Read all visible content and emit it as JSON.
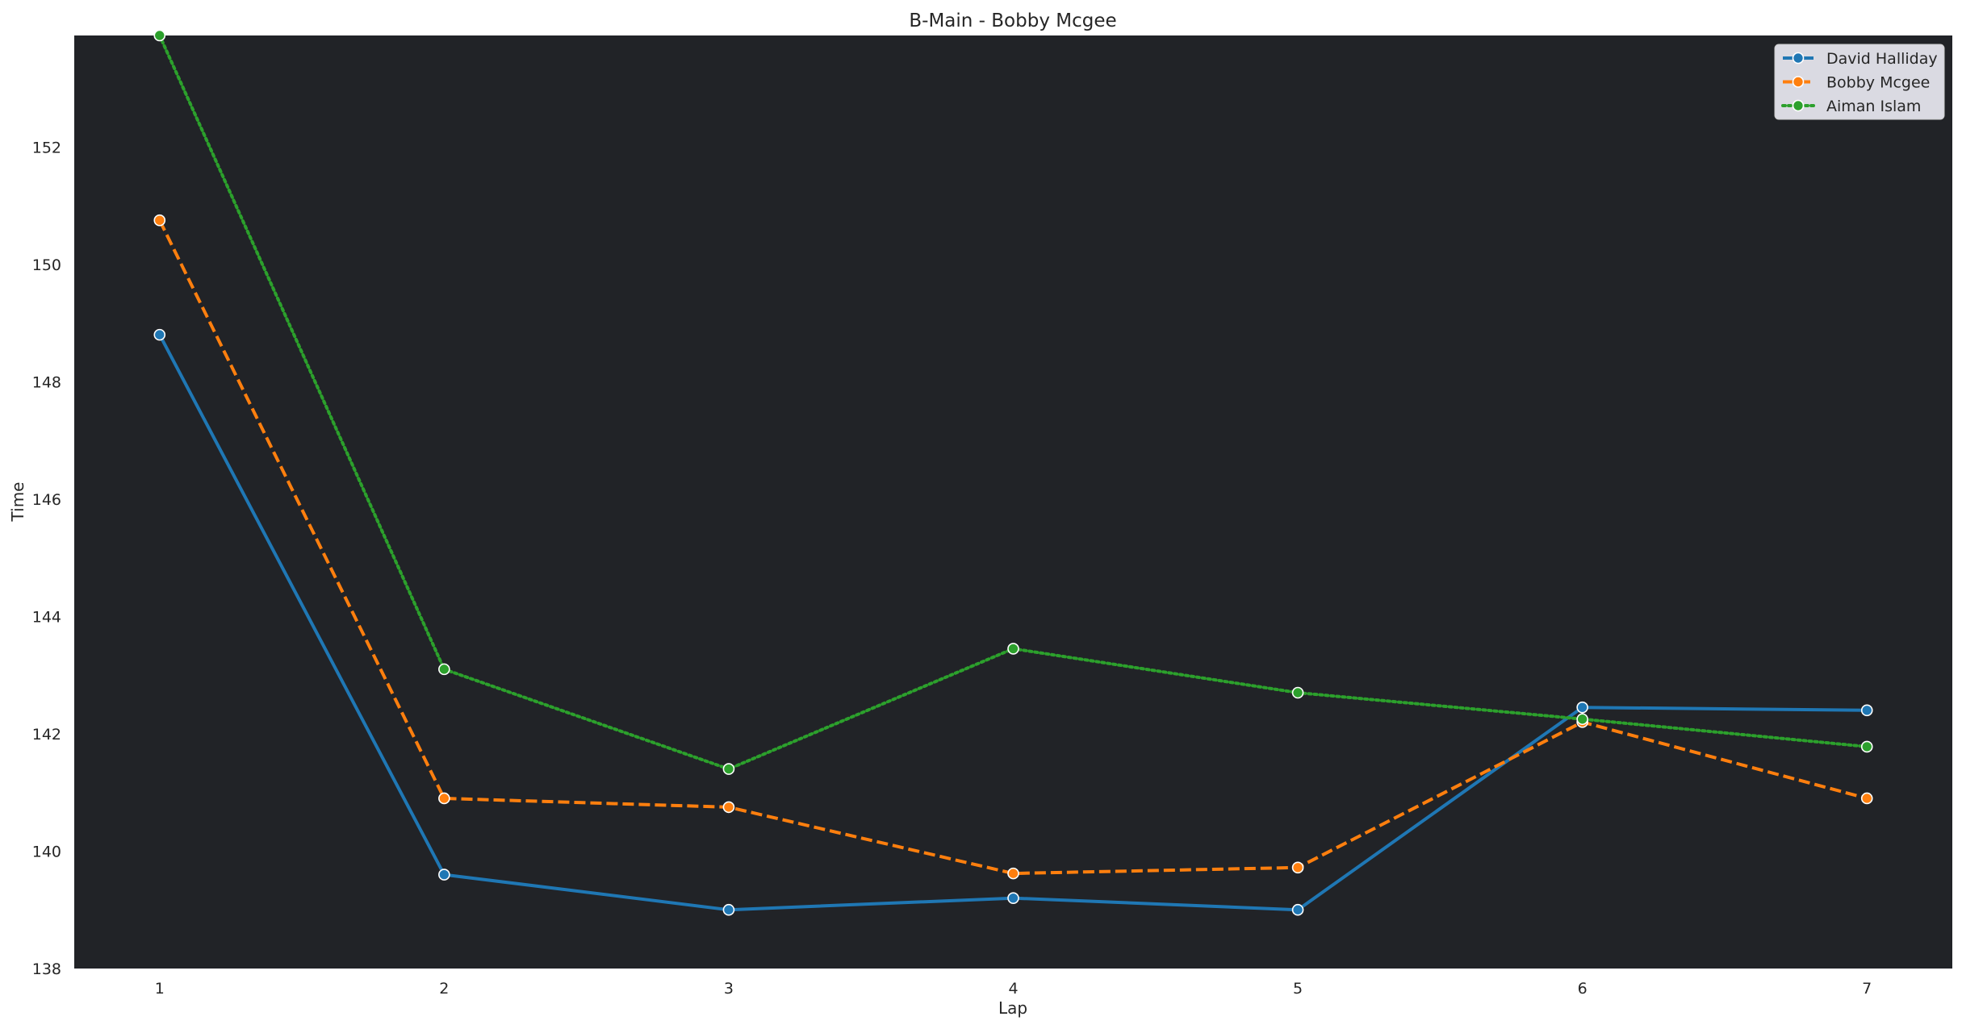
{
  "chart_data": {
    "type": "line",
    "title": "B-Main - Bobby Mcgee",
    "xlabel": "Lap",
    "ylabel": "Time",
    "x": [
      1,
      2,
      3,
      4,
      5,
      6,
      7
    ],
    "xlim": [
      0.7,
      7.3
    ],
    "ylim": [
      138,
      153.9
    ],
    "xticks": [
      1,
      2,
      3,
      4,
      5,
      6,
      7
    ],
    "yticks": [
      138,
      140,
      142,
      144,
      146,
      148,
      150,
      152
    ],
    "grid": false,
    "legend_position": "top-right",
    "plot_background": "#212327",
    "series": [
      {
        "name": "David Halliday",
        "color": "#1f77b4",
        "dash": "solid",
        "values": [
          148.8,
          139.6,
          139.0,
          139.2,
          139.0,
          142.45,
          142.4
        ]
      },
      {
        "name": "Bobby Mcgee",
        "color": "#ff7f0e",
        "dash": "dashed",
        "values": [
          150.75,
          140.9,
          140.75,
          139.62,
          139.72,
          142.2,
          140.9
        ]
      },
      {
        "name": "Aiman Islam",
        "color": "#2ca02c",
        "dash": "dotted",
        "values": [
          153.9,
          143.1,
          141.4,
          143.45,
          142.7,
          142.25,
          141.78
        ]
      }
    ]
  }
}
